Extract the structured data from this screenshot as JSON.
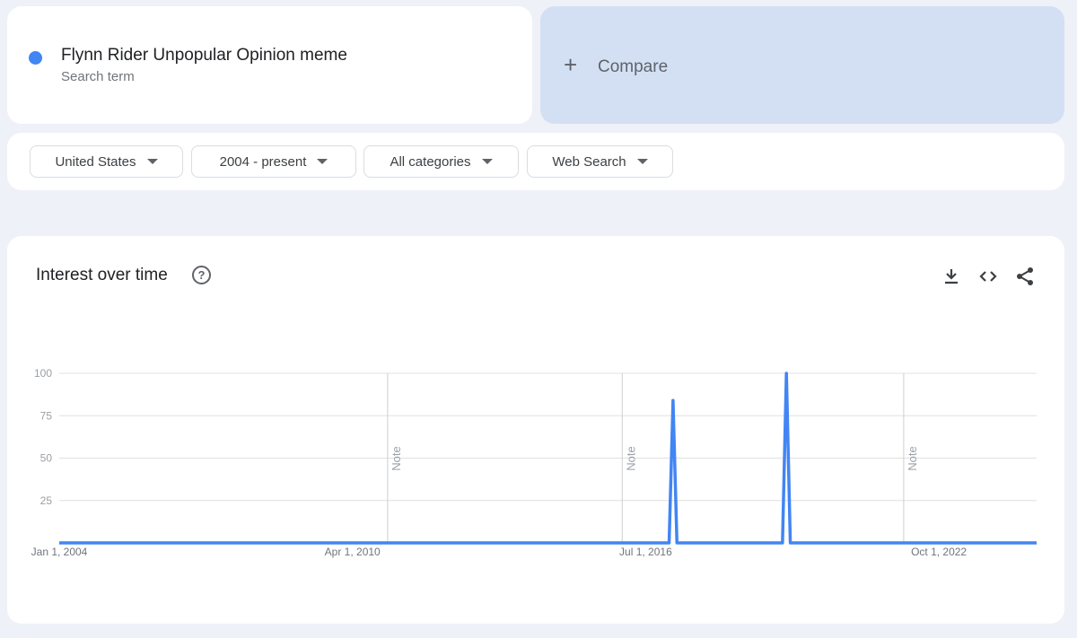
{
  "search_term": {
    "label": "Flynn Rider Unpopular Opinion meme",
    "sublabel": "Search term",
    "color": "#4285f4"
  },
  "compare": {
    "icon": "plus-icon",
    "label": "Compare"
  },
  "filters": [
    {
      "label": "United States"
    },
    {
      "label": "2004 - present"
    },
    {
      "label": "All categories"
    },
    {
      "label": "Web Search"
    }
  ],
  "chart_card": {
    "title": "Interest over time",
    "help_icon": "?",
    "tools": [
      "download-icon",
      "embed-code-icon",
      "share-icon"
    ]
  },
  "chart_data": {
    "type": "line",
    "title": "",
    "xlabel": "",
    "ylabel": "",
    "ylim": [
      0,
      100
    ],
    "xlim": [
      "2004-01",
      "2024-11"
    ],
    "yticks": [
      25,
      50,
      75,
      100
    ],
    "xtick_labels": [
      {
        "date": "2004-01",
        "label": "Jan 1, 2004"
      },
      {
        "date": "2010-04",
        "label": "Apr 1, 2010"
      },
      {
        "date": "2016-07",
        "label": "Jul 1, 2016"
      },
      {
        "date": "2022-10",
        "label": "Oct 1, 2022"
      }
    ],
    "notes": [
      {
        "date": "2011-01",
        "label": "Note"
      },
      {
        "date": "2016-01",
        "label": "Note"
      },
      {
        "date": "2022-01",
        "label": "Note"
      }
    ],
    "grid": true,
    "series": [
      {
        "color": "#4285f4",
        "points": [
          [
            "2004-01",
            0
          ],
          [
            "2017-01",
            0
          ],
          [
            "2017-02",
            84
          ],
          [
            "2017-03",
            0
          ],
          [
            "2019-06",
            0
          ],
          [
            "2019-07",
            100
          ],
          [
            "2019-08",
            0
          ],
          [
            "2024-11",
            0
          ]
        ]
      }
    ]
  }
}
